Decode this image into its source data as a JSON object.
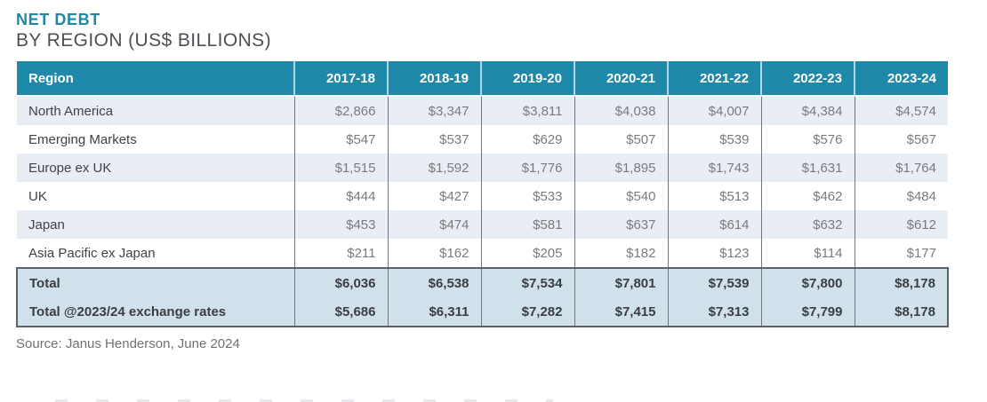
{
  "title": {
    "line1": "NET DEBT",
    "line2": "BY REGION (US$ BILLIONS)"
  },
  "source": "Source: Janus Henderson, June 2024",
  "chart_data": {
    "type": "table",
    "title": "NET DEBT BY REGION (US$ BILLIONS)",
    "columns": [
      "Region",
      "2017-18",
      "2018-19",
      "2019-20",
      "2020-21",
      "2021-22",
      "2022-23",
      "2023-24"
    ],
    "rows": [
      {
        "region": "North America",
        "values": [
          "$2,866",
          "$3,347",
          "$3,811",
          "$4,038",
          "$4,007",
          "$4,384",
          "$4,574"
        ]
      },
      {
        "region": "Emerging Markets",
        "values": [
          "$547",
          "$537",
          "$629",
          "$507",
          "$539",
          "$576",
          "$567"
        ]
      },
      {
        "region": "Europe ex UK",
        "values": [
          "$1,515",
          "$1,592",
          "$1,776",
          "$1,895",
          "$1,743",
          "$1,631",
          "$1,764"
        ]
      },
      {
        "region": "UK",
        "values": [
          "$444",
          "$427",
          "$533",
          "$540",
          "$513",
          "$462",
          "$484"
        ]
      },
      {
        "region": "Japan",
        "values": [
          "$453",
          "$474",
          "$581",
          "$637",
          "$614",
          "$632",
          "$612"
        ]
      },
      {
        "region": "Asia Pacific ex Japan",
        "values": [
          "$211",
          "$162",
          "$205",
          "$182",
          "$123",
          "$114",
          "$177"
        ]
      }
    ],
    "total_rows": [
      {
        "region": "Total",
        "values": [
          "$6,036",
          "$6,538",
          "$7,534",
          "$7,801",
          "$7,539",
          "$7,800",
          "$8,178"
        ]
      },
      {
        "region": "Total @2023/24 exchange rates",
        "values": [
          "$5,686",
          "$6,311",
          "$7,282",
          "$7,415",
          "$7,313",
          "$7,799",
          "$8,178"
        ]
      }
    ]
  },
  "colors": {
    "title_color": "#1e87a7",
    "subtitle_color": "#4c5055",
    "header_bg": "#1f89a9",
    "header_separator": "#aedae7",
    "stripe_bg": "#e9eef5",
    "total_bg": "#d0e1ec",
    "total_border": "#5d6267",
    "body_separator": "#71767b",
    "region_text": "#3e4246",
    "value_text": "#787b7e",
    "total_text": "#3a3e42",
    "source_text": "#6e7174"
  }
}
